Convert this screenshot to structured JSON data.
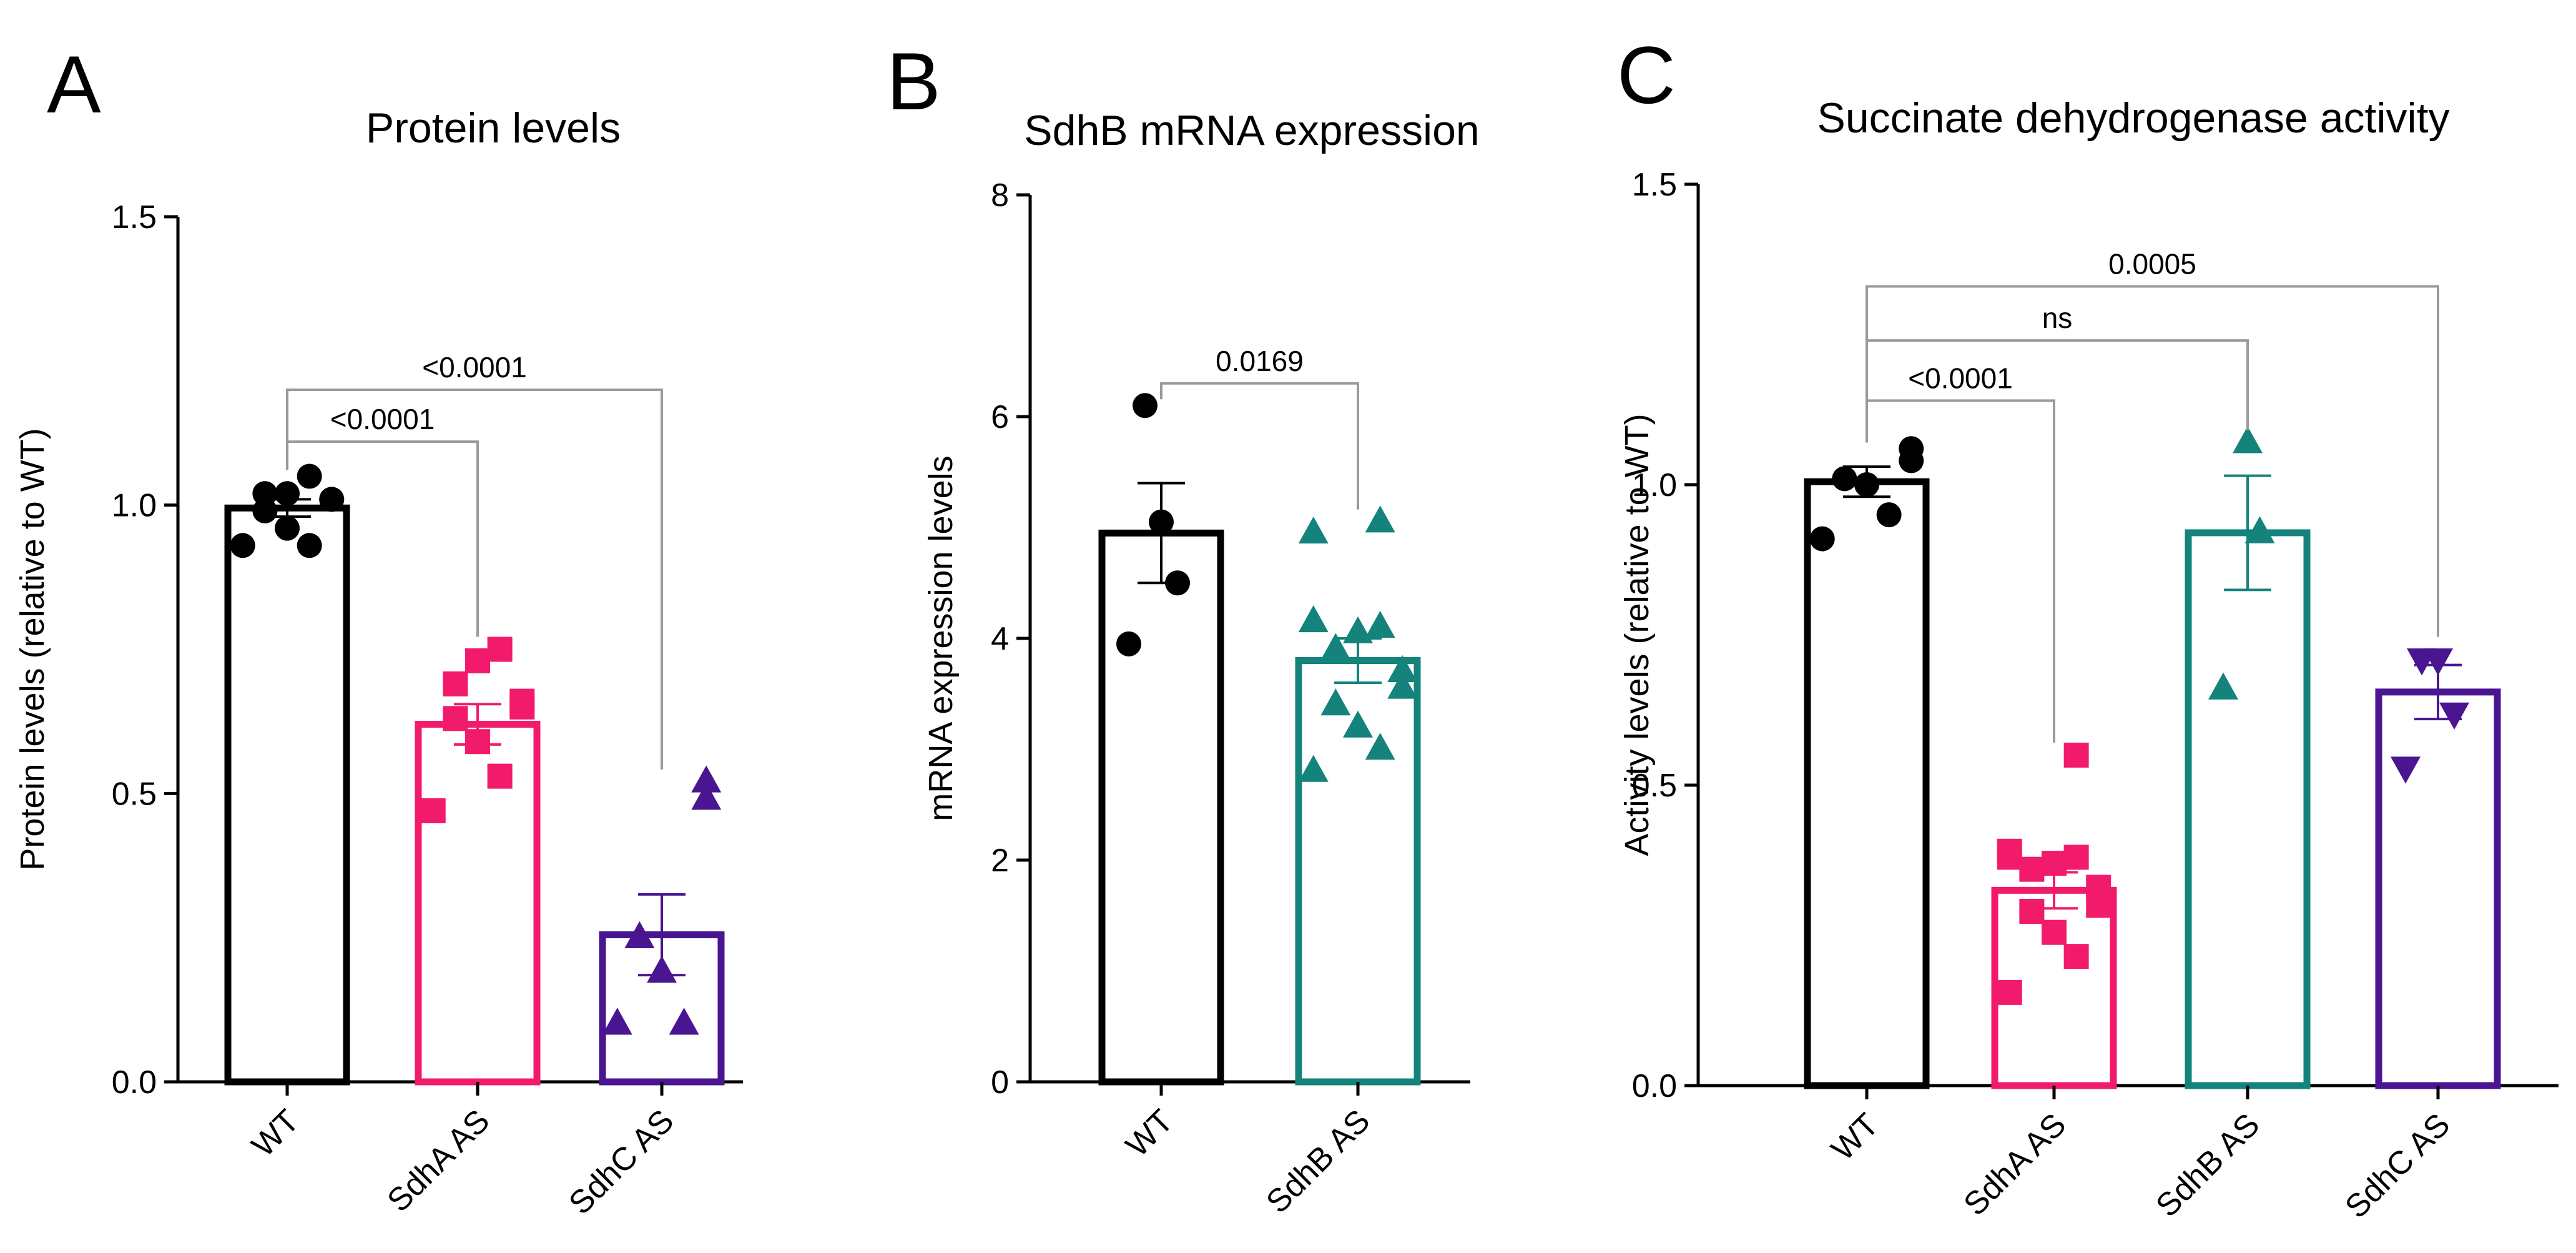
{
  "colors": {
    "WT": "#000000",
    "SdhA AS": "#f21b6b",
    "SdhB AS": "#13837c",
    "SdhC AS": "#4a1591",
    "bracket": "#9a9a9a"
  },
  "chart_data": [
    {
      "type": "bar",
      "panel": "A",
      "title": "Protein levels",
      "xlabel": "",
      "ylabel": "Protein levels (relative to WT)",
      "ylim": [
        0,
        1.5
      ],
      "yticks": [
        0.0,
        0.5,
        1.0,
        1.5
      ],
      "ytick_labels": [
        "0.0",
        "0.5",
        "1.0",
        "1.5"
      ],
      "grid": false,
      "categories": [
        "WT",
        "SdhA AS",
        "SdhC AS"
      ],
      "values": [
        0.995,
        0.62,
        0.255
      ],
      "errors": [
        0.015,
        0.035,
        0.07
      ],
      "points": [
        [
          0.93,
          0.93,
          0.96,
          0.99,
          1.01,
          1.01,
          1.02,
          1.02,
          1.05
        ],
        [
          0.47,
          0.53,
          0.59,
          0.63,
          0.65,
          0.66,
          0.69,
          0.73,
          0.75
        ],
        [
          0.1,
          0.1,
          0.19,
          0.25,
          0.49,
          0.52
        ]
      ],
      "markers": [
        "circle",
        "square",
        "triangle-up"
      ],
      "comparisons": [
        {
          "from": 0,
          "to": 1,
          "label": "<0.0001",
          "y": 1.11
        },
        {
          "from": 0,
          "to": 2,
          "label": "<0.0001",
          "y": 1.2
        }
      ]
    },
    {
      "type": "bar",
      "panel": "B",
      "title": "SdhB mRNA expression",
      "xlabel": "",
      "ylabel": "mRNA expression levels",
      "ylim": [
        0,
        8
      ],
      "yticks": [
        0,
        2,
        4,
        6,
        8
      ],
      "ytick_labels": [
        "0",
        "2",
        "4",
        "6",
        "8"
      ],
      "grid": false,
      "categories": [
        "WT",
        "SdhB AS"
      ],
      "values": [
        4.95,
        3.8
      ],
      "errors": [
        0.45,
        0.2
      ],
      "points": [
        [
          3.95,
          4.5,
          5.05,
          6.1
        ],
        [
          2.8,
          3.0,
          3.2,
          3.4,
          3.55,
          3.7,
          3.9,
          4.05,
          4.1,
          4.15,
          4.95,
          5.05
        ]
      ],
      "markers": [
        "circle",
        "triangle-up"
      ],
      "comparisons": [
        {
          "from": 0,
          "to": 1,
          "label": "0.0169",
          "y": 6.3
        }
      ]
    },
    {
      "type": "bar",
      "panel": "C",
      "title": "Succinate dehydrogenase activity",
      "xlabel": "",
      "ylabel": "Activity levels (relative to WT)",
      "ylim": [
        0,
        1.5
      ],
      "yticks": [
        0.0,
        0.5,
        1.0,
        1.5
      ],
      "ytick_labels": [
        "0.0",
        "0.5",
        "1.0",
        "1.5"
      ],
      "grid": false,
      "categories": [
        "WT",
        "SdhA AS",
        "SdhB AS",
        "SdhC AS"
      ],
      "values": [
        1.005,
        0.325,
        0.92,
        0.655
      ],
      "errors": [
        0.025,
        0.03,
        0.095,
        0.045
      ],
      "points": [
        [
          0.91,
          0.95,
          1.0,
          1.01,
          1.04,
          1.06
        ],
        [
          0.155,
          0.215,
          0.255,
          0.29,
          0.3,
          0.33,
          0.36,
          0.37,
          0.38,
          0.38,
          0.39,
          0.55
        ],
        [
          0.66,
          0.92,
          1.07
        ],
        [
          0.53,
          0.62,
          0.71,
          0.71
        ]
      ],
      "markers": [
        "circle",
        "square",
        "triangle-up",
        "triangle-down"
      ],
      "comparisons": [
        {
          "from": 0,
          "to": 1,
          "label": "<0.0001",
          "y": 1.14
        },
        {
          "from": 0,
          "to": 2,
          "label": "ns",
          "y": 1.24
        },
        {
          "from": 0,
          "to": 3,
          "label": "0.0005",
          "y": 1.33
        }
      ]
    }
  ]
}
